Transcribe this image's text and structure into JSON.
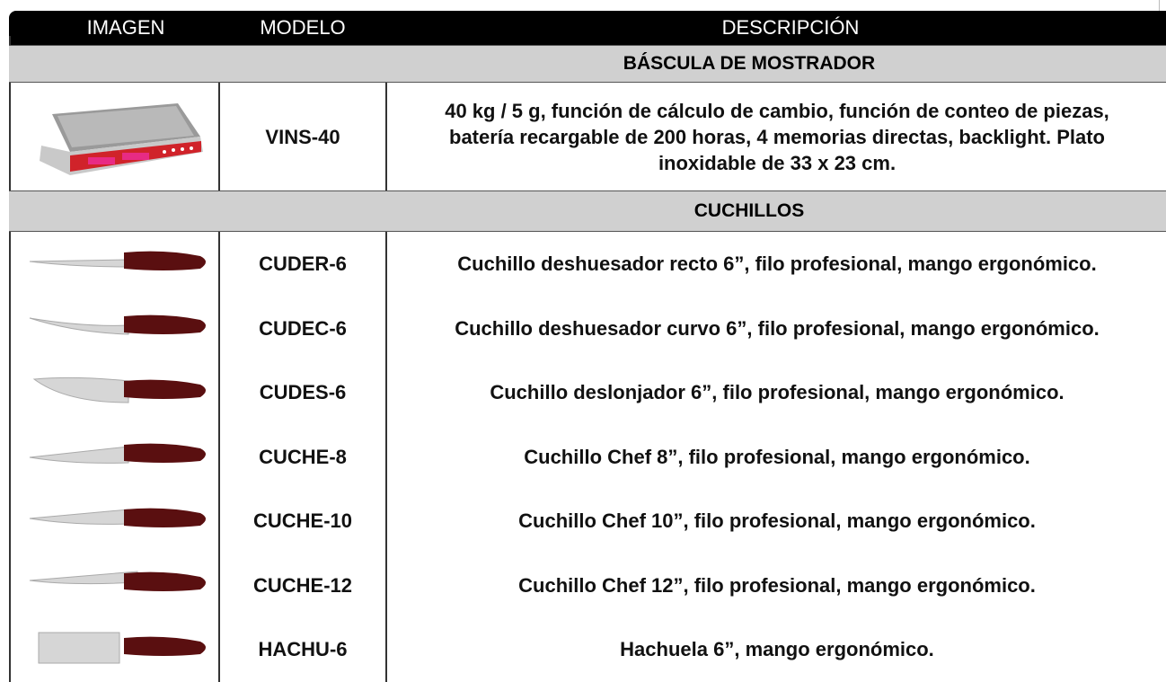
{
  "header": {
    "columns": [
      "IMAGEN",
      "MODELO",
      "DESCRIPCIÓN"
    ]
  },
  "sections": [
    {
      "title": "BÁSCULA DE MOSTRADOR",
      "rows": [
        {
          "model": "VINS-40",
          "description": "40 kg / 5 g, función de cálculo de cambio, función de conteo de piezas,  batería recargable de 200 horas, 4 memorias directas, backlight. Plato  inoxidable de 33 x 23 cm."
        }
      ]
    },
    {
      "title": "CUCHILLOS",
      "rows": [
        {
          "model": "CUDER-6",
          "description": "Cuchillo deshuesador recto 6”, filo profesional, mango ergonómico."
        },
        {
          "model": "CUDEC-6",
          "description": "Cuchillo deshuesador curvo 6”, filo profesional, mango ergonómico."
        },
        {
          "model": "CUDES-6",
          "description": "Cuchillo deslonjador 6”, filo profesional, mango ergonómico."
        },
        {
          "model": "CUCHE-8",
          "description": "Cuchillo Chef 8”, filo profesional, mango ergonómico."
        },
        {
          "model": "CUCHE-10",
          "description": "Cuchillo Chef 10”, filo profesional, mango ergonómico."
        },
        {
          "model": "CUCHE-12",
          "description": "Cuchillo Chef 12”, filo profesional, mango ergonómico."
        },
        {
          "model": "HACHU-6",
          "description": "Hachuela 6”, mango ergonómico."
        }
      ]
    }
  ]
}
